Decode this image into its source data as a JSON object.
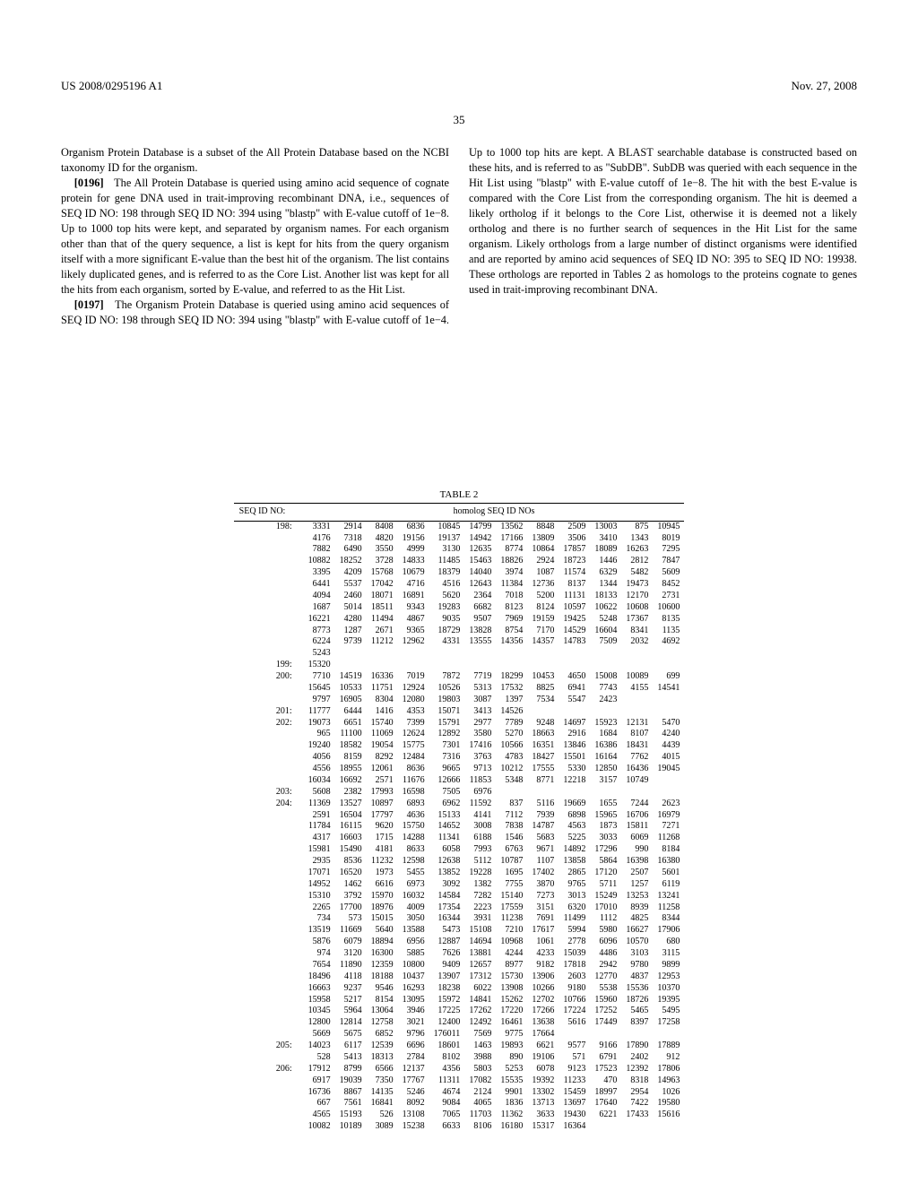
{
  "header": {
    "pub_number": "US 2008/0295196 A1",
    "date": "Nov. 27, 2008",
    "page_number": "35"
  },
  "paragraphs": {
    "p1": "Organism Protein Database is a subset of the All Protein Database based on the NCBI taxonomy ID for the organism.",
    "p2_num": "[0196]",
    "p2": "The All Protein Database is queried using amino acid sequence of cognate protein for gene DNA used in trait-improving recombinant DNA, i.e., sequences of SEQ ID NO: 198 through SEQ ID NO: 394 using \"blastp\" with E-value cutoff of 1e−8. Up to 1000 top hits were kept, and separated by organism names. For each organism other than that of the query sequence, a list is kept for hits from the query organism itself with a more significant E-value than the best hit of the organism. The list contains likely duplicated genes, and is referred to as the Core List. Another list was kept for all the hits from each organism, sorted by E-value, and referred to as the Hit List.",
    "p3_num": "[0197]",
    "p3a": "The Organism Protein Database is queried using amino acid sequences of SEQ ID NO: 198 through SEQ ID ",
    "p3b": "NO: 394 using \"blastp\" with E-value cutoff of 1e−4. Up to 1000 top hits are kept. A BLAST searchable database is constructed based on these hits, and is referred to as \"SubDB\". SubDB was queried with each sequence in the Hit List using \"blastp\" with E-value cutoff of 1e−8. The hit with the best E-value is compared with the Core List from the corresponding organism. The hit is deemed a likely ortholog if it belongs to the Core List, otherwise it is deemed not a likely ortholog and there is no further search of sequences in the Hit List for the same organism. Likely orthologs from a large number of distinct organisms were identified and are reported by amino acid sequences of SEQ ID NO: 395 to SEQ ID NO: 19938. These orthologs are reported in Tables 2 as homologs to the proteins cognate to genes used in trait-improving recombinant DNA."
  },
  "table": {
    "title": "TABLE 2",
    "head_left": "SEQ ID NO:",
    "head_center": "homolog SEQ ID NOs",
    "groups": [
      {
        "id": "198:",
        "rows": [
          [
            3331,
            2914,
            8408,
            6836,
            10845,
            14799,
            13562,
            8848,
            2509,
            13003,
            875,
            10945
          ],
          [
            4176,
            7318,
            4820,
            19156,
            19137,
            14942,
            17166,
            13809,
            3506,
            3410,
            1343,
            8019
          ],
          [
            7882,
            6490,
            3550,
            4999,
            3130,
            12635,
            8774,
            10864,
            17857,
            18089,
            16263,
            7295
          ],
          [
            10882,
            18252,
            3728,
            14833,
            11485,
            15463,
            18826,
            2924,
            18723,
            1446,
            2812,
            7847
          ],
          [
            3395,
            4209,
            15768,
            10679,
            18379,
            14040,
            3974,
            1087,
            11574,
            6329,
            5482,
            5609
          ],
          [
            6441,
            5537,
            17042,
            4716,
            4516,
            12643,
            11384,
            12736,
            8137,
            1344,
            19473,
            8452
          ],
          [
            4094,
            2460,
            18071,
            16891,
            5620,
            2364,
            7018,
            5200,
            11131,
            18133,
            12170,
            2731
          ],
          [
            1687,
            5014,
            18511,
            9343,
            19283,
            6682,
            8123,
            8124,
            10597,
            10622,
            10608,
            10600
          ],
          [
            16221,
            4280,
            11494,
            4867,
            9035,
            9507,
            7969,
            19159,
            19425,
            5248,
            17367,
            8135
          ],
          [
            8773,
            1287,
            2671,
            9365,
            18729,
            13828,
            8754,
            7170,
            14529,
            16604,
            8341,
            1135
          ],
          [
            6224,
            9739,
            11212,
            12962,
            4331,
            13555,
            14356,
            14357,
            14783,
            7509,
            2032,
            4692
          ],
          [
            5243
          ]
        ]
      },
      {
        "id": "199:",
        "rows": [
          [
            15320
          ]
        ]
      },
      {
        "id": "200:",
        "rows": [
          [
            7710,
            14519,
            16336,
            7019,
            7872,
            7719,
            18299,
            10453,
            4650,
            15008,
            10089,
            699
          ],
          [
            15645,
            10533,
            11751,
            12924,
            10526,
            5313,
            17532,
            8825,
            6941,
            7743,
            4155,
            14541
          ],
          [
            9797,
            16905,
            8304,
            12080,
            19803,
            3087,
            1397,
            7534,
            5547,
            2423
          ]
        ]
      },
      {
        "id": "201:",
        "rows": [
          [
            11777,
            6444,
            1416,
            4353,
            15071,
            3413,
            14526
          ]
        ]
      },
      {
        "id": "202:",
        "rows": [
          [
            19073,
            6651,
            15740,
            7399,
            15791,
            2977,
            7789,
            9248,
            14697,
            15923,
            12131,
            5470
          ],
          [
            965,
            11100,
            11069,
            12624,
            12892,
            3580,
            5270,
            18663,
            2916,
            1684,
            8107,
            4240
          ],
          [
            19240,
            18582,
            19054,
            15775,
            7301,
            17416,
            10566,
            16351,
            13846,
            16386,
            18431,
            4439
          ],
          [
            4056,
            8159,
            8292,
            12484,
            7316,
            3763,
            4783,
            18427,
            15501,
            16164,
            7762,
            4015
          ],
          [
            4556,
            18955,
            12061,
            8636,
            9665,
            9713,
            10212,
            17555,
            5330,
            12850,
            16436,
            19045
          ],
          [
            16034,
            16692,
            2571,
            11676,
            12666,
            11853,
            5348,
            8771,
            12218,
            3157,
            10749
          ]
        ]
      },
      {
        "id": "203:",
        "rows": [
          [
            5608,
            2382,
            17993,
            16598,
            7505,
            6976
          ]
        ]
      },
      {
        "id": "204:",
        "rows": [
          [
            11369,
            13527,
            10897,
            6893,
            6962,
            11592,
            837,
            5116,
            19669,
            1655,
            7244,
            2623
          ],
          [
            2591,
            16504,
            17797,
            4636,
            15133,
            4141,
            7112,
            7939,
            6898,
            15965,
            16706,
            16979
          ],
          [
            11784,
            16115,
            9620,
            15750,
            14652,
            3008,
            7838,
            14787,
            4563,
            1873,
            15811,
            7271
          ],
          [
            4317,
            16603,
            1715,
            14288,
            11341,
            6188,
            1546,
            5683,
            5225,
            3033,
            6069,
            11268
          ],
          [
            15981,
            15490,
            4181,
            8633,
            6058,
            7993,
            6763,
            9671,
            14892,
            17296,
            990,
            8184
          ],
          [
            2935,
            8536,
            11232,
            12598,
            12638,
            5112,
            10787,
            1107,
            13858,
            5864,
            16398,
            16380
          ],
          [
            17071,
            16520,
            1973,
            5455,
            13852,
            19228,
            1695,
            17402,
            2865,
            17120,
            2507,
            5601
          ],
          [
            14952,
            1462,
            6616,
            6973,
            3092,
            1382,
            7755,
            3870,
            9765,
            5711,
            1257,
            6119
          ],
          [
            15310,
            3792,
            15970,
            16032,
            14584,
            7282,
            15140,
            7273,
            3013,
            15249,
            13253,
            13241
          ],
          [
            2265,
            17700,
            18976,
            4009,
            17354,
            2223,
            17559,
            3151,
            6320,
            17010,
            8939,
            11258
          ],
          [
            734,
            573,
            15015,
            3050,
            16344,
            3931,
            11238,
            7691,
            11499,
            1112,
            4825,
            8344
          ],
          [
            13519,
            11669,
            5640,
            13588,
            5473,
            15108,
            7210,
            17617,
            5994,
            5980,
            16627,
            17906
          ],
          [
            5876,
            6079,
            18894,
            6956,
            12887,
            14694,
            10968,
            1061,
            2778,
            6096,
            10570,
            680
          ],
          [
            974,
            3120,
            16300,
            5885,
            7626,
            13881,
            4244,
            4233,
            15039,
            4486,
            3103,
            3115
          ],
          [
            7654,
            11890,
            12359,
            10800,
            9409,
            12657,
            8977,
            9182,
            17818,
            2942,
            9780,
            9899
          ],
          [
            18496,
            4118,
            18188,
            10437,
            13907,
            17312,
            15730,
            13906,
            2603,
            12770,
            4837,
            12953
          ],
          [
            16663,
            9237,
            9546,
            16293,
            18238,
            6022,
            13908,
            10266,
            9180,
            5538,
            15536,
            10370
          ],
          [
            15958,
            5217,
            8154,
            13095,
            15972,
            14841,
            15262,
            12702,
            10766,
            15960,
            18726,
            19395
          ],
          [
            10345,
            5964,
            13064,
            3946,
            17225,
            17262,
            17220,
            17266,
            17224,
            17252,
            5465,
            5495
          ],
          [
            12800,
            12814,
            12758,
            3021,
            12400,
            12492,
            16461,
            13638,
            5616,
            17449,
            8397,
            17258
          ],
          [
            5669,
            5675,
            6852,
            9796,
            176011,
            7569,
            9775,
            17664
          ]
        ]
      },
      {
        "id": "205:",
        "rows": [
          [
            14023,
            6117,
            12539,
            6696,
            18601,
            1463,
            19893,
            6621,
            9577,
            9166,
            17890,
            17889
          ],
          [
            528,
            5413,
            18313,
            2784,
            8102,
            3988,
            890,
            19106,
            571,
            6791,
            2402,
            912
          ]
        ]
      },
      {
        "id": "206:",
        "rows": [
          [
            17912,
            8799,
            6566,
            12137,
            4356,
            5803,
            5253,
            6078,
            9123,
            17523,
            12392,
            17806
          ],
          [
            6917,
            19039,
            7350,
            17767,
            11311,
            17082,
            15535,
            19392,
            11233,
            470,
            8318,
            14963
          ],
          [
            16736,
            8867,
            14135,
            5246,
            4674,
            2124,
            9901,
            13302,
            15459,
            18997,
            2954,
            1026
          ],
          [
            667,
            7561,
            16841,
            8092,
            9084,
            4065,
            1836,
            13713,
            13697,
            17640,
            7422,
            19580
          ],
          [
            4565,
            15193,
            526,
            13108,
            7065,
            11703,
            11362,
            3633,
            19430,
            6221,
            17433,
            15616
          ],
          [
            10082,
            10189,
            3089,
            15238,
            6633,
            8106,
            16180,
            15317,
            16364
          ]
        ]
      }
    ]
  }
}
